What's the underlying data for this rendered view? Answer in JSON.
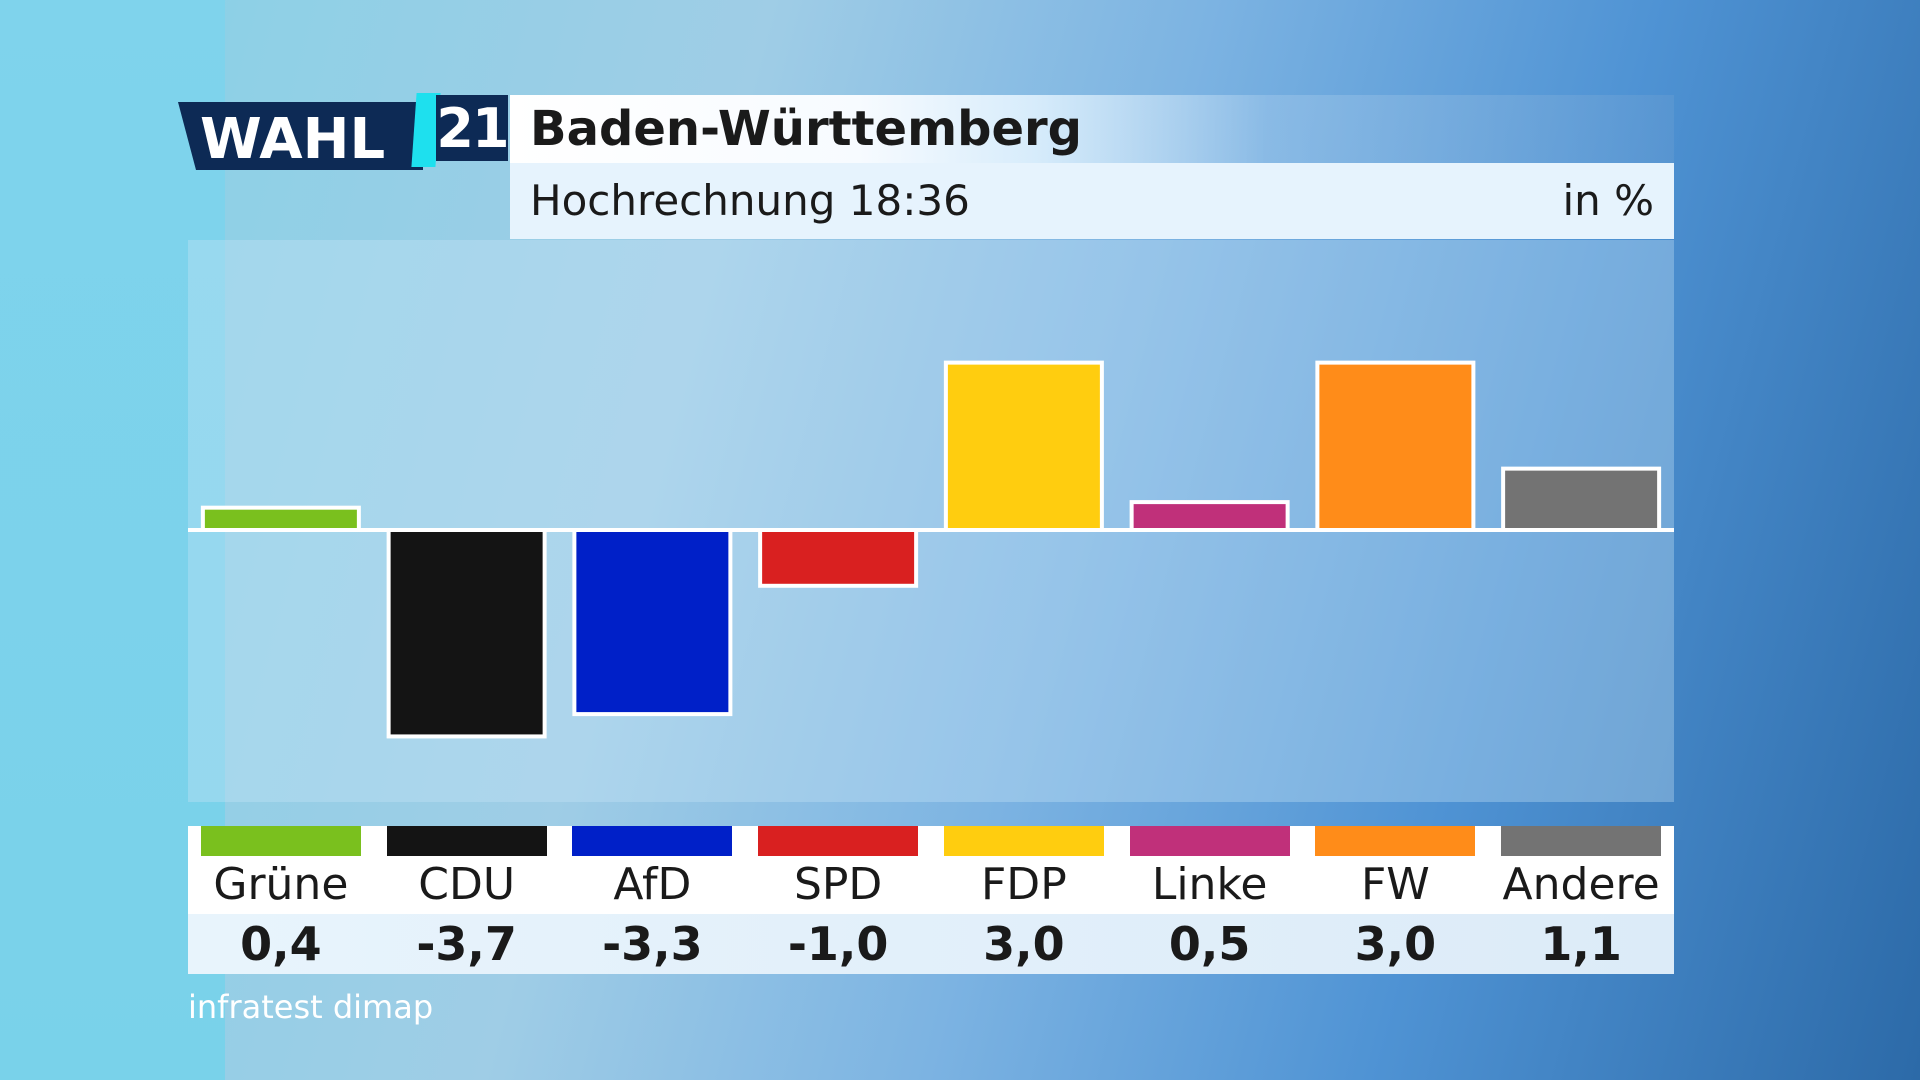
{
  "header": {
    "logo_text": "WAHL",
    "logo_number": "21",
    "title": "Baden-Württemberg",
    "subtitle": "Hochrechnung 18:36",
    "unit": "in %"
  },
  "source": "infratest dimap",
  "colors": {
    "logo_bg": "#0d2a55",
    "logo_accent": "#1ee0ee"
  },
  "chart_data": {
    "type": "bar",
    "title": "Baden-Württemberg",
    "subtitle": "Hochrechnung 18:36",
    "unit": "in %",
    "categories": [
      "Grüne",
      "CDU",
      "AfD",
      "SPD",
      "FDP",
      "Linke",
      "FW",
      "Andere"
    ],
    "values": [
      0.4,
      -3.7,
      -3.3,
      -1.0,
      3.0,
      0.5,
      3.0,
      1.1
    ],
    "labels": [
      "0,4",
      "-3,7",
      "-3,3",
      "-1,0",
      "3,0",
      "0,5",
      "3,0",
      "1,1"
    ],
    "colors": [
      "#7ac01e",
      "#141414",
      "#0020c8",
      "#d92020",
      "#ffcd0f",
      "#c0307a",
      "#ff8c19",
      "#737373"
    ],
    "ylim": [
      -3.8,
      3.8
    ],
    "grid": false,
    "legend": "bottom"
  }
}
